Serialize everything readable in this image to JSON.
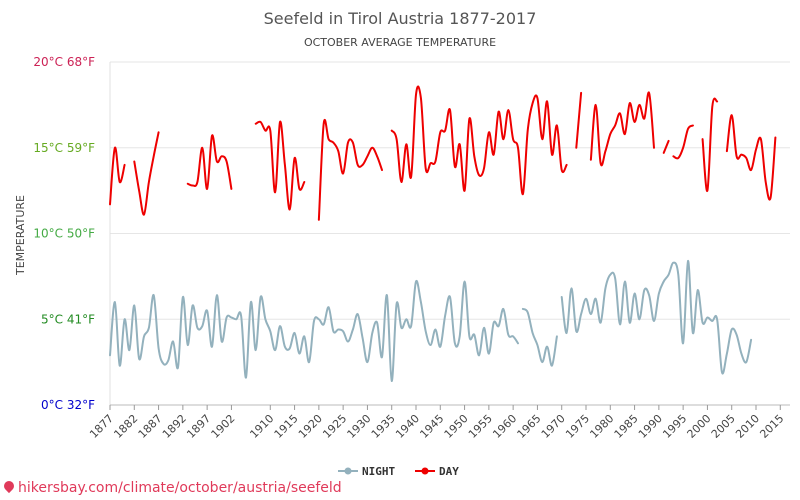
{
  "footer": {
    "link_text": "hikersbay.com/climate/october/austria/seefeld"
  },
  "legend": {
    "night_label": "NIGHT",
    "day_label": "DAY"
  },
  "chart_data": {
    "type": "line",
    "title": "Seefeld in Tirol Austria 1877-2017",
    "subtitle": "OCTOBER AVERAGE TEMPERATURE",
    "ylabel": "TEMPERATURE",
    "xlabel": "",
    "ylim": [
      0,
      20
    ],
    "xlim": [
      1877,
      2017
    ],
    "grid": true,
    "legend_position": "bottom",
    "y_ticks": [
      {
        "value": 0,
        "label": "0°C 32°F",
        "color": "#0000cc"
      },
      {
        "value": 5,
        "label": "5°C 41°F",
        "color": "#228b22"
      },
      {
        "value": 10,
        "label": "10°C 50°F",
        "color": "#44aa44"
      },
      {
        "value": 15,
        "label": "15°C 59°F",
        "color": "#66aa22"
      },
      {
        "value": 20,
        "label": "20°C 68°F",
        "color": "#cc2255"
      }
    ],
    "x_ticks": [
      1877,
      1882,
      1887,
      1892,
      1897,
      1902,
      1910,
      1915,
      1920,
      1925,
      1930,
      1935,
      1940,
      1945,
      1950,
      1955,
      1960,
      1965,
      1970,
      1975,
      1980,
      1985,
      1990,
      1995,
      2000,
      2005,
      2010,
      2015
    ],
    "series": [
      {
        "name": "DAY",
        "color": "#ee0000",
        "segments": [
          [
            [
              1877,
              11.7
            ],
            [
              1878,
              15.0
            ],
            [
              1879,
              13.0
            ],
            [
              1880,
              14.0
            ]
          ],
          [
            [
              1882,
              14.2
            ],
            [
              1883,
              12.5
            ],
            [
              1884,
              11.1
            ],
            [
              1885,
              13.0
            ],
            [
              1886,
              14.5
            ],
            [
              1887,
              15.9
            ]
          ],
          [
            [
              1893,
              12.9
            ],
            [
              1894,
              12.8
            ],
            [
              1895,
              13.0
            ],
            [
              1896,
              15.0
            ],
            [
              1897,
              12.6
            ],
            [
              1898,
              15.7
            ],
            [
              1899,
              14.2
            ],
            [
              1900,
              14.5
            ],
            [
              1901,
              14.2
            ],
            [
              1902,
              12.6
            ]
          ],
          [
            [
              1907,
              16.4
            ],
            [
              1908,
              16.5
            ],
            [
              1909,
              16.0
            ],
            [
              1910,
              16.0
            ],
            [
              1911,
              12.4
            ],
            [
              1912,
              16.5
            ],
            [
              1913,
              14.0
            ],
            [
              1914,
              11.4
            ],
            [
              1915,
              14.4
            ],
            [
              1916,
              12.6
            ],
            [
              1917,
              13.0
            ]
          ],
          [
            [
              1920,
              10.8
            ],
            [
              1921,
              16.4
            ],
            [
              1922,
              15.5
            ],
            [
              1923,
              15.3
            ],
            [
              1924,
              14.8
            ],
            [
              1925,
              13.5
            ],
            [
              1926,
              15.3
            ],
            [
              1927,
              15.3
            ],
            [
              1928,
              14.0
            ],
            [
              1929,
              14.0
            ],
            [
              1930,
              14.5
            ],
            [
              1931,
              15.0
            ],
            [
              1932,
              14.5
            ],
            [
              1933,
              13.7
            ]
          ],
          [
            [
              1935,
              16.0
            ],
            [
              1936,
              15.5
            ],
            [
              1937,
              13.0
            ],
            [
              1938,
              15.2
            ],
            [
              1939,
              13.3
            ],
            [
              1940,
              18.1
            ],
            [
              1941,
              17.9
            ],
            [
              1942,
              13.8
            ],
            [
              1943,
              14.1
            ],
            [
              1944,
              14.2
            ],
            [
              1945,
              15.9
            ],
            [
              1946,
              16.0
            ],
            [
              1947,
              17.2
            ],
            [
              1948,
              13.9
            ],
            [
              1949,
              15.2
            ],
            [
              1950,
              12.5
            ],
            [
              1951,
              16.7
            ],
            [
              1952,
              14.5
            ],
            [
              1953,
              13.4
            ],
            [
              1954,
              13.8
            ],
            [
              1955,
              15.9
            ],
            [
              1956,
              14.6
            ],
            [
              1957,
              17.1
            ],
            [
              1958,
              15.5
            ],
            [
              1959,
              17.2
            ],
            [
              1960,
              15.5
            ],
            [
              1961,
              15.0
            ],
            [
              1962,
              12.3
            ],
            [
              1963,
              16.0
            ],
            [
              1964,
              17.6
            ],
            [
              1965,
              17.9
            ],
            [
              1966,
              15.5
            ],
            [
              1967,
              17.7
            ],
            [
              1968,
              14.6
            ],
            [
              1969,
              16.3
            ],
            [
              1970,
              13.7
            ],
            [
              1971,
              14.0
            ]
          ],
          [
            [
              1973,
              15.0
            ],
            [
              1974,
              18.2
            ]
          ],
          [
            [
              1976,
              14.3
            ],
            [
              1977,
              17.5
            ],
            [
              1978,
              14.1
            ],
            [
              1979,
              14.8
            ],
            [
              1980,
              15.8
            ],
            [
              1981,
              16.3
            ],
            [
              1982,
              17.0
            ],
            [
              1983,
              15.8
            ],
            [
              1984,
              17.6
            ],
            [
              1985,
              16.5
            ],
            [
              1986,
              17.5
            ],
            [
              1987,
              16.7
            ],
            [
              1988,
              18.2
            ],
            [
              1989,
              15.0
            ]
          ],
          [
            [
              1991,
              14.7
            ],
            [
              1992,
              15.4
            ]
          ],
          [
            [
              1993,
              14.5
            ],
            [
              1994,
              14.4
            ],
            [
              1995,
              15.0
            ],
            [
              1996,
              16.1
            ],
            [
              1997,
              16.3
            ]
          ],
          [
            [
              1999,
              15.5
            ],
            [
              2000,
              12.5
            ],
            [
              2001,
              17.4
            ],
            [
              2002,
              17.7
            ]
          ],
          [
            [
              2004,
              14.8
            ],
            [
              2005,
              16.9
            ],
            [
              2006,
              14.5
            ],
            [
              2007,
              14.6
            ],
            [
              2008,
              14.4
            ],
            [
              2009,
              13.7
            ],
            [
              2010,
              14.9
            ],
            [
              2011,
              15.5
            ],
            [
              2012,
              13.0
            ],
            [
              2013,
              12.1
            ],
            [
              2014,
              15.6
            ]
          ]
        ]
      },
      {
        "name": "NIGHT",
        "color": "#93b1bd",
        "segments": [
          [
            [
              1877,
              2.9
            ],
            [
              1878,
              6.0
            ],
            [
              1879,
              2.3
            ],
            [
              1880,
              5.0
            ],
            [
              1881,
              3.2
            ],
            [
              1882,
              5.8
            ],
            [
              1883,
              2.7
            ],
            [
              1884,
              4.0
            ],
            [
              1885,
              4.5
            ],
            [
              1886,
              6.4
            ],
            [
              1887,
              3.3
            ],
            [
              1888,
              2.4
            ],
            [
              1889,
              2.6
            ],
            [
              1890,
              3.7
            ],
            [
              1891,
              2.2
            ],
            [
              1892,
              6.3
            ],
            [
              1893,
              3.5
            ],
            [
              1894,
              5.8
            ],
            [
              1895,
              4.5
            ],
            [
              1896,
              4.6
            ],
            [
              1897,
              5.5
            ],
            [
              1898,
              3.4
            ],
            [
              1899,
              6.4
            ],
            [
              1900,
              3.7
            ],
            [
              1901,
              5.1
            ],
            [
              1902,
              5.1
            ],
            [
              1903,
              5.0
            ],
            [
              1904,
              5.2
            ],
            [
              1905,
              1.6
            ],
            [
              1906,
              6.0
            ],
            [
              1907,
              3.2
            ],
            [
              1908,
              6.3
            ],
            [
              1909,
              5.0
            ],
            [
              1910,
              4.3
            ],
            [
              1911,
              3.2
            ],
            [
              1912,
              4.6
            ],
            [
              1913,
              3.4
            ],
            [
              1914,
              3.3
            ],
            [
              1915,
              4.2
            ],
            [
              1916,
              3.0
            ],
            [
              1917,
              4.0
            ],
            [
              1918,
              2.5
            ],
            [
              1919,
              4.9
            ],
            [
              1920,
              5.0
            ],
            [
              1921,
              4.7
            ],
            [
              1922,
              5.7
            ],
            [
              1923,
              4.3
            ],
            [
              1924,
              4.4
            ],
            [
              1925,
              4.3
            ],
            [
              1926,
              3.7
            ],
            [
              1927,
              4.4
            ],
            [
              1928,
              5.3
            ],
            [
              1929,
              3.9
            ],
            [
              1930,
              2.5
            ],
            [
              1931,
              4.2
            ],
            [
              1932,
              4.8
            ],
            [
              1933,
              2.8
            ],
            [
              1934,
              6.4
            ],
            [
              1935,
              1.4
            ],
            [
              1936,
              5.9
            ],
            [
              1937,
              4.5
            ],
            [
              1938,
              5.0
            ],
            [
              1939,
              4.6
            ],
            [
              1940,
              7.2
            ],
            [
              1941,
              6.0
            ],
            [
              1942,
              4.3
            ],
            [
              1943,
              3.5
            ],
            [
              1944,
              4.4
            ],
            [
              1945,
              3.4
            ],
            [
              1946,
              5.2
            ],
            [
              1947,
              6.3
            ],
            [
              1948,
              3.6
            ],
            [
              1949,
              4.0
            ],
            [
              1950,
              7.2
            ],
            [
              1951,
              4.0
            ],
            [
              1952,
              4.1
            ],
            [
              1953,
              2.9
            ],
            [
              1954,
              4.5
            ],
            [
              1955,
              3.0
            ],
            [
              1956,
              4.8
            ],
            [
              1957,
              4.6
            ],
            [
              1958,
              5.6
            ],
            [
              1959,
              4.1
            ],
            [
              1960,
              4.0
            ],
            [
              1961,
              3.6
            ]
          ],
          [
            [
              1962,
              5.6
            ],
            [
              1963,
              5.4
            ],
            [
              1964,
              4.2
            ],
            [
              1965,
              3.5
            ],
            [
              1966,
              2.5
            ],
            [
              1967,
              3.4
            ],
            [
              1968,
              2.3
            ],
            [
              1969,
              4.0
            ]
          ],
          [
            [
              1970,
              6.3
            ],
            [
              1971,
              4.2
            ],
            [
              1972,
              6.8
            ],
            [
              1973,
              4.3
            ],
            [
              1974,
              5.3
            ],
            [
              1975,
              6.2
            ],
            [
              1976,
              5.3
            ],
            [
              1977,
              6.2
            ],
            [
              1978,
              4.8
            ],
            [
              1979,
              6.8
            ],
            [
              1980,
              7.6
            ],
            [
              1981,
              7.4
            ],
            [
              1982,
              4.7
            ],
            [
              1983,
              7.2
            ],
            [
              1984,
              4.8
            ],
            [
              1985,
              6.5
            ],
            [
              1986,
              5.0
            ],
            [
              1987,
              6.7
            ],
            [
              1988,
              6.4
            ],
            [
              1989,
              4.9
            ],
            [
              1990,
              6.5
            ],
            [
              1991,
              7.2
            ],
            [
              1992,
              7.6
            ],
            [
              1993,
              8.3
            ],
            [
              1994,
              7.6
            ],
            [
              1995,
              3.6
            ],
            [
              1996,
              8.4
            ],
            [
              1997,
              4.2
            ],
            [
              1998,
              6.7
            ],
            [
              1999,
              4.8
            ],
            [
              2000,
              5.1
            ],
            [
              2001,
              4.9
            ],
            [
              2002,
              5.0
            ],
            [
              2003,
              1.9
            ],
            [
              2004,
              3.0
            ],
            [
              2005,
              4.4
            ],
            [
              2006,
              4.1
            ],
            [
              2007,
              3.0
            ],
            [
              2008,
              2.5
            ],
            [
              2009,
              3.8
            ]
          ]
        ]
      }
    ]
  }
}
